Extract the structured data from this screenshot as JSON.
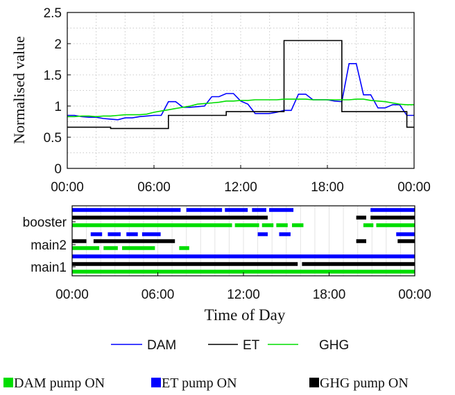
{
  "chart_data": [
    {
      "type": "line",
      "ylabel": "Normalised value",
      "xlabel": "",
      "xlim": [
        0,
        24
      ],
      "ylim": [
        0,
        2.5
      ],
      "x_ticks": [
        0,
        6,
        12,
        18,
        24
      ],
      "x_tick_labels": [
        "00:00",
        "06:00",
        "12:00",
        "18:00",
        "00:00"
      ],
      "y_ticks": [
        0,
        0.5,
        1,
        1.5,
        2,
        2.5
      ],
      "y_tick_labels": [
        "0",
        "0.5",
        "1",
        "1.5",
        "2",
        "2.5"
      ],
      "grid": "dotted",
      "series": [
        {
          "name": "DAM",
          "color": "#0000ff",
          "step": false,
          "x": [
            0,
            0.5,
            1,
            1.5,
            2,
            2.5,
            3,
            3.5,
            4,
            4.5,
            5,
            5.5,
            6,
            6.5,
            7,
            7.5,
            8,
            8.5,
            9,
            9.5,
            10,
            10.5,
            11,
            11.5,
            12,
            12.5,
            13,
            13.5,
            14,
            14.5,
            15,
            15.5,
            16,
            16.5,
            17,
            17.5,
            18,
            18.5,
            19,
            19.5,
            20,
            20.5,
            21,
            21.5,
            22,
            22.5,
            23,
            23.5,
            24
          ],
          "y": [
            0.85,
            0.85,
            0.83,
            0.82,
            0.82,
            0.8,
            0.79,
            0.78,
            0.81,
            0.81,
            0.83,
            0.84,
            0.85,
            0.85,
            1.07,
            1.07,
            0.98,
            0.98,
            0.99,
            1.0,
            1.15,
            1.15,
            1.2,
            1.2,
            1.08,
            1.03,
            0.88,
            0.88,
            0.88,
            0.9,
            0.93,
            0.93,
            1.19,
            1.19,
            1.1,
            1.1,
            1.1,
            1.08,
            1.07,
            1.68,
            1.68,
            1.18,
            1.18,
            0.97,
            0.97,
            1.02,
            1.02,
            0.85,
            0.85
          ]
        },
        {
          "name": "ET",
          "color": "#000000",
          "step": true,
          "x": [
            0,
            3,
            7,
            11,
            15,
            19,
            23.5,
            24
          ],
          "y": [
            0.66,
            0.64,
            0.85,
            0.91,
            2.05,
            0.91,
            0.66,
            0.66
          ]
        },
        {
          "name": "GHG",
          "color": "#00dd00",
          "step": false,
          "x": [
            0,
            0.5,
            1,
            1.5,
            2,
            2.5,
            3,
            3.5,
            4,
            4.5,
            5,
            5.5,
            6,
            6.5,
            7,
            7.5,
            8,
            8.5,
            9,
            9.5,
            10,
            10.5,
            11,
            11.5,
            12,
            12.5,
            13,
            13.5,
            14,
            14.5,
            15,
            15.5,
            16,
            16.5,
            17,
            17.5,
            18,
            18.5,
            19,
            19.5,
            20,
            20.5,
            21,
            21.5,
            22,
            22.5,
            23,
            23.5,
            24
          ],
          "y": [
            0.83,
            0.83,
            0.84,
            0.84,
            0.83,
            0.84,
            0.84,
            0.85,
            0.86,
            0.86,
            0.86,
            0.87,
            0.9,
            0.92,
            0.94,
            0.96,
            0.98,
            1.0,
            1.03,
            1.04,
            1.05,
            1.06,
            1.08,
            1.08,
            1.09,
            1.09,
            1.1,
            1.1,
            1.1,
            1.1,
            1.11,
            1.11,
            1.11,
            1.11,
            1.1,
            1.1,
            1.1,
            1.1,
            1.1,
            1.1,
            1.11,
            1.11,
            1.09,
            1.08,
            1.07,
            1.05,
            1.03,
            1.02,
            1.02
          ]
        }
      ]
    },
    {
      "type": "timeline",
      "xlabel": "Time of Day",
      "xlim": [
        0,
        24
      ],
      "x_ticks": [
        0,
        6,
        12,
        18,
        24
      ],
      "x_tick_labels": [
        "00:00",
        "06:00",
        "12:00",
        "18:00",
        "00:00"
      ],
      "categories": [
        "booster",
        "main2",
        "main1"
      ],
      "series_colors": {
        "DAM": "#00dd00",
        "ET": "#0000ff",
        "GHG": "#000000"
      },
      "rows": [
        {
          "pump": "booster",
          "series": "ET",
          "segments": [
            [
              0,
              7.6
            ],
            [
              8,
              10.5
            ],
            [
              10.7,
              12.3
            ],
            [
              12.6,
              13.6
            ],
            [
              13.8,
              15.5
            ],
            [
              20.9,
              24
            ]
          ]
        },
        {
          "pump": "booster",
          "series": "GHG",
          "segments": [
            [
              0,
              13.7
            ],
            [
              19.9,
              20.6
            ],
            [
              20.9,
              24
            ]
          ]
        },
        {
          "pump": "booster",
          "series": "DAM",
          "segments": [
            [
              0,
              11.2
            ],
            [
              11.4,
              13.1
            ],
            [
              13.3,
              14.1
            ],
            [
              14.3,
              15.1
            ],
            [
              15.4,
              16.2
            ],
            [
              20.4,
              21.1
            ],
            [
              21.3,
              24
            ]
          ]
        },
        {
          "pump": "main2",
          "series": "ET",
          "segments": [
            [
              1.3,
              2.1
            ],
            [
              2.5,
              3.4
            ],
            [
              3.8,
              4.6
            ],
            [
              4.9,
              6.2
            ],
            [
              13.0,
              13.7
            ],
            [
              14.5,
              15.3
            ],
            [
              22.7,
              24
            ]
          ]
        },
        {
          "pump": "main2",
          "series": "GHG",
          "segments": [
            [
              0,
              1.0
            ],
            [
              1.5,
              7.2
            ],
            [
              19.9,
              20.6
            ],
            [
              22.8,
              24
            ]
          ]
        },
        {
          "pump": "main2",
          "series": "DAM",
          "segments": [
            [
              0,
              1.9
            ],
            [
              2.2,
              3.2
            ],
            [
              3.5,
              5.8
            ],
            [
              7.5,
              8.2
            ]
          ]
        },
        {
          "pump": "main1",
          "series": "ET",
          "segments": [
            [
              0,
              24
            ]
          ]
        },
        {
          "pump": "main1",
          "series": "GHG",
          "segments": [
            [
              0,
              15.8
            ],
            [
              16.1,
              24
            ]
          ]
        },
        {
          "pump": "main1",
          "series": "DAM",
          "segments": [
            [
              0,
              24
            ]
          ]
        }
      ]
    }
  ],
  "line_legend": [
    {
      "label": "DAM",
      "color": "#0000ff"
    },
    {
      "label": "ET",
      "color": "#000000"
    },
    {
      "label": "GHG",
      "color": "#00dd00"
    }
  ],
  "pump_legend": [
    {
      "label": "DAM pump ON",
      "color": "#00dd00"
    },
    {
      "label": "ET pump ON",
      "color": "#0000ff"
    },
    {
      "label": "GHG pump ON",
      "color": "#000000"
    }
  ]
}
